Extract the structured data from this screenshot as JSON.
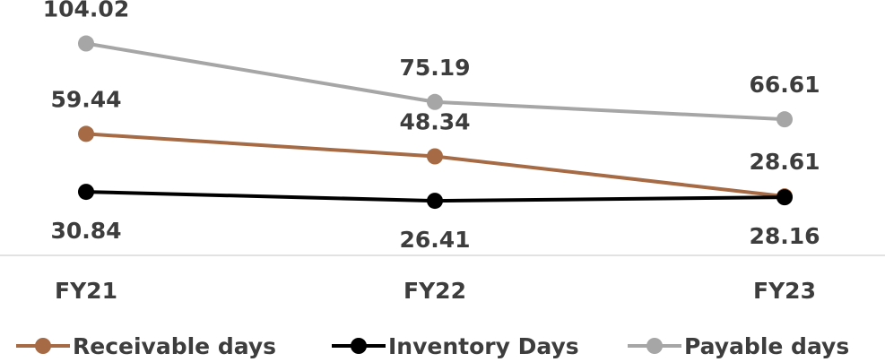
{
  "chart_data": {
    "type": "line",
    "categories": [
      "FY21",
      "FY22",
      "FY23"
    ],
    "series": [
      {
        "name": "Receivable days",
        "values": [
          59.44,
          48.34,
          28.61
        ],
        "color": "#a66a44",
        "labels": [
          "59.44",
          "48.34",
          "28.61"
        ]
      },
      {
        "name": "Inventory Days",
        "values": [
          30.84,
          26.41,
          28.16
        ],
        "color": "#000000",
        "labels": [
          "30.84",
          "26.41",
          "28.16"
        ]
      },
      {
        "name": "Payable days",
        "values": [
          104.02,
          75.19,
          66.61
        ],
        "color": "#a6a6a6",
        "labels": [
          "104.02",
          "75.19",
          "66.61"
        ]
      }
    ],
    "title": "",
    "xlabel": "",
    "ylabel": "",
    "ylim": [
      -0.5,
      110
    ],
    "grid": false,
    "legend": "bottom"
  }
}
